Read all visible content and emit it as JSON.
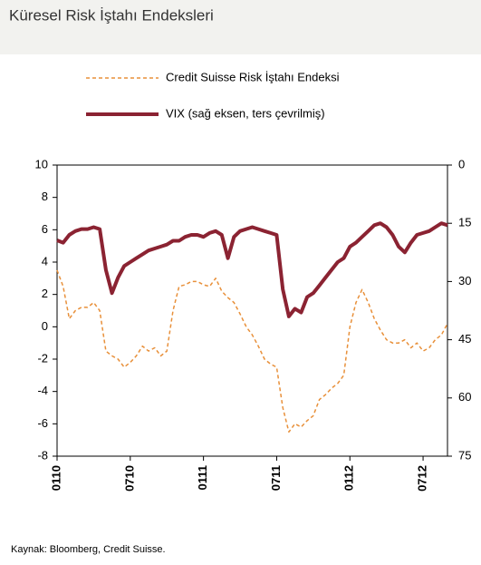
{
  "chart_data": {
    "type": "line",
    "title": "Küresel Risk İştahı Endeksleri",
    "source": "Kaynak: Bloomberg, Credit Suisse.",
    "categories": [
      "0110",
      null,
      null,
      null,
      null,
      null,
      null,
      null,
      null,
      null,
      null,
      null,
      "0710",
      null,
      null,
      null,
      null,
      null,
      null,
      null,
      null,
      null,
      null,
      null,
      "0111",
      null,
      null,
      null,
      null,
      null,
      null,
      null,
      null,
      null,
      null,
      null,
      "0711",
      null,
      null,
      null,
      null,
      null,
      null,
      null,
      null,
      null,
      null,
      null,
      "0112",
      null,
      null,
      null,
      null,
      null,
      null,
      null,
      null,
      null,
      null,
      null,
      "0712",
      null,
      null,
      null,
      null
    ],
    "ylim": [
      -8,
      10
    ],
    "yticks": [
      10,
      8,
      6,
      4,
      2,
      0,
      -2,
      -4,
      -6,
      -8
    ],
    "y2lim": [
      75,
      0
    ],
    "y2ticks": [
      0,
      15,
      30,
      45,
      60,
      75
    ],
    "series": [
      {
        "name": "Credit Suisse Risk İştahı Endeksi",
        "color": "#e8903a",
        "dashed": true,
        "values": [
          3.5,
          2.5,
          0.5,
          1,
          1.2,
          1.2,
          1.5,
          1.0,
          -1.5,
          -1.8,
          -2.0,
          -2.5,
          -2.2,
          -1.8,
          -1.2,
          -1.5,
          -1.3,
          -1.8,
          -1.5,
          1.0,
          2.5,
          2.6,
          2.8,
          2.8,
          2.6,
          2.5,
          3.0,
          2.2,
          1.8,
          1.5,
          0.8,
          0.0,
          -0.5,
          -1.2,
          -2.0,
          -2.3,
          -2.5,
          -5.0,
          -6.5,
          -6.0,
          -6.2,
          -5.8,
          -5.5,
          -4.5,
          -4.2,
          -3.8,
          -3.5,
          -3.0,
          0.0,
          1.5,
          2.3,
          1.5,
          0.5,
          -0.2,
          -0.8,
          -1.0,
          -1.0,
          -0.8,
          -1.3,
          -1.0,
          -1.5,
          -1.3,
          -0.8,
          -0.5,
          0.2
        ]
      },
      {
        "name": "VIX (sağ eksen, ters çevrilmiş)",
        "color": "#8b2332",
        "axis": "y2",
        "values": [
          19.4,
          20,
          18,
          17,
          16.5,
          16.5,
          16,
          16.5,
          27,
          33,
          29,
          26,
          25,
          24,
          23,
          22,
          21.5,
          21,
          20.5,
          19.5,
          19.5,
          18.5,
          18,
          18,
          18.5,
          17.5,
          17,
          18,
          24,
          18.5,
          17,
          16.5,
          16,
          16.5,
          17,
          17.5,
          18,
          32,
          39,
          37,
          38,
          34,
          33,
          31,
          29,
          27,
          25,
          24,
          21,
          20,
          18.5,
          17,
          15.5,
          15,
          16,
          18,
          21,
          22.5,
          20,
          18,
          17.5,
          17,
          16,
          15,
          15.5
        ]
      }
    ]
  }
}
